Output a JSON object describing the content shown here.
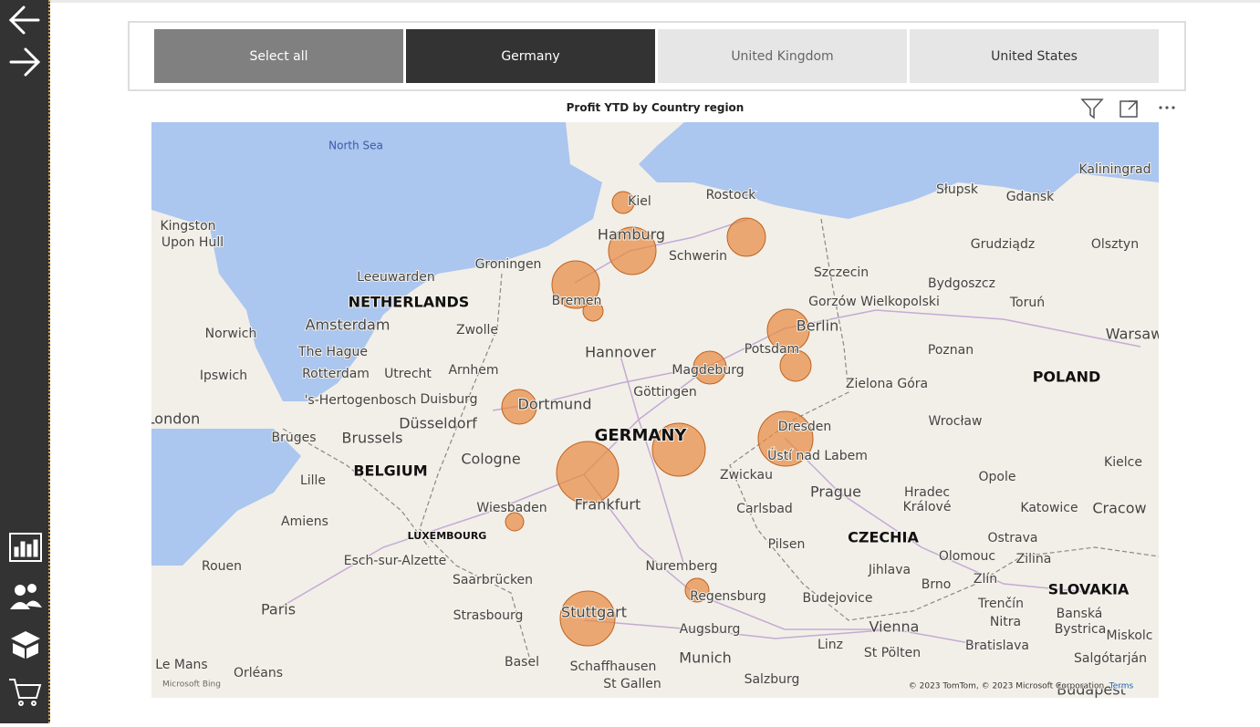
{
  "slicer": {
    "items": [
      "Select all",
      "Germany",
      "United Kingdom",
      "United States"
    ],
    "selected": "Germany"
  },
  "visual": {
    "title": "Profit YTD by Country region"
  },
  "map": {
    "seas": [
      "North Sea"
    ],
    "countries": [
      "NETHERLANDS",
      "POLAND",
      "GERMANY",
      "BELGIUM",
      "LUXEMBOURG",
      "CZECHIA",
      "SLOVAKIA"
    ],
    "labels": [
      "Kiel",
      "Rostock",
      "Słupsk",
      "Gdansk",
      "Kaliningrad",
      "Kingston",
      "Upon Hull",
      "Hamburg",
      "Schwerin",
      "Grudziądz",
      "Olsztyn",
      "Groningen",
      "Leeuwarden",
      "Szczecin",
      "Bydgoszcz",
      "Bremen",
      "Gorzów Wielkopolski",
      "Toruń",
      "Norwich",
      "Amsterdam",
      "Zwolle",
      "Berlin",
      "Warsaw",
      "The Hague",
      "Hannover",
      "Potsdam",
      "Poznan",
      "Ipswich",
      "Rotterdam",
      "Utrecht",
      "Arnhem",
      "Magdeburg",
      "Göttingen",
      "Zielona Góra",
      "'s-Hertogenbosch",
      "Duisburg",
      "Dortmund",
      "Wrocław",
      "London",
      "Düsseldorf",
      "Dresden",
      "Bruges",
      "Brussels",
      "Cologne",
      "Ústí nad Labem",
      "Kielce",
      "Zwickau",
      "Opole",
      "Lille",
      "Prague",
      "Hradec",
      "Králové",
      "Wiesbaden",
      "Frankfurt",
      "Carlsbad",
      "Katowice",
      "Cracow",
      "Amiens",
      "Ostrava",
      "Pilsen",
      "Olomouc",
      "Zilina",
      "Esch-sur-Alzette",
      "Nuremberg",
      "Rouen",
      "Jihlava",
      "Brno",
      "Zlín",
      "Saarbrücken",
      "Regensburg",
      "Budejovice",
      "Paris",
      "Strasbourg",
      "Stuttgart",
      "Trenčín",
      "Banská",
      "Bystrica",
      "Nitra",
      "Vienna",
      "Augsburg",
      "Bratislava",
      "Miskolc",
      "Linz",
      "St Pölten",
      "Munich",
      "Salgótarján",
      "Le Mans",
      "Basel",
      "Schaffhausen",
      "Orléans",
      "Salzburg",
      "St Gallen",
      "Budapest"
    ],
    "attribution": {
      "provider": "Microsoft Bing",
      "copyright": "© 2023 TomTom, © 2023 Microsoft Corporation",
      "terms": "Terms"
    }
  }
}
